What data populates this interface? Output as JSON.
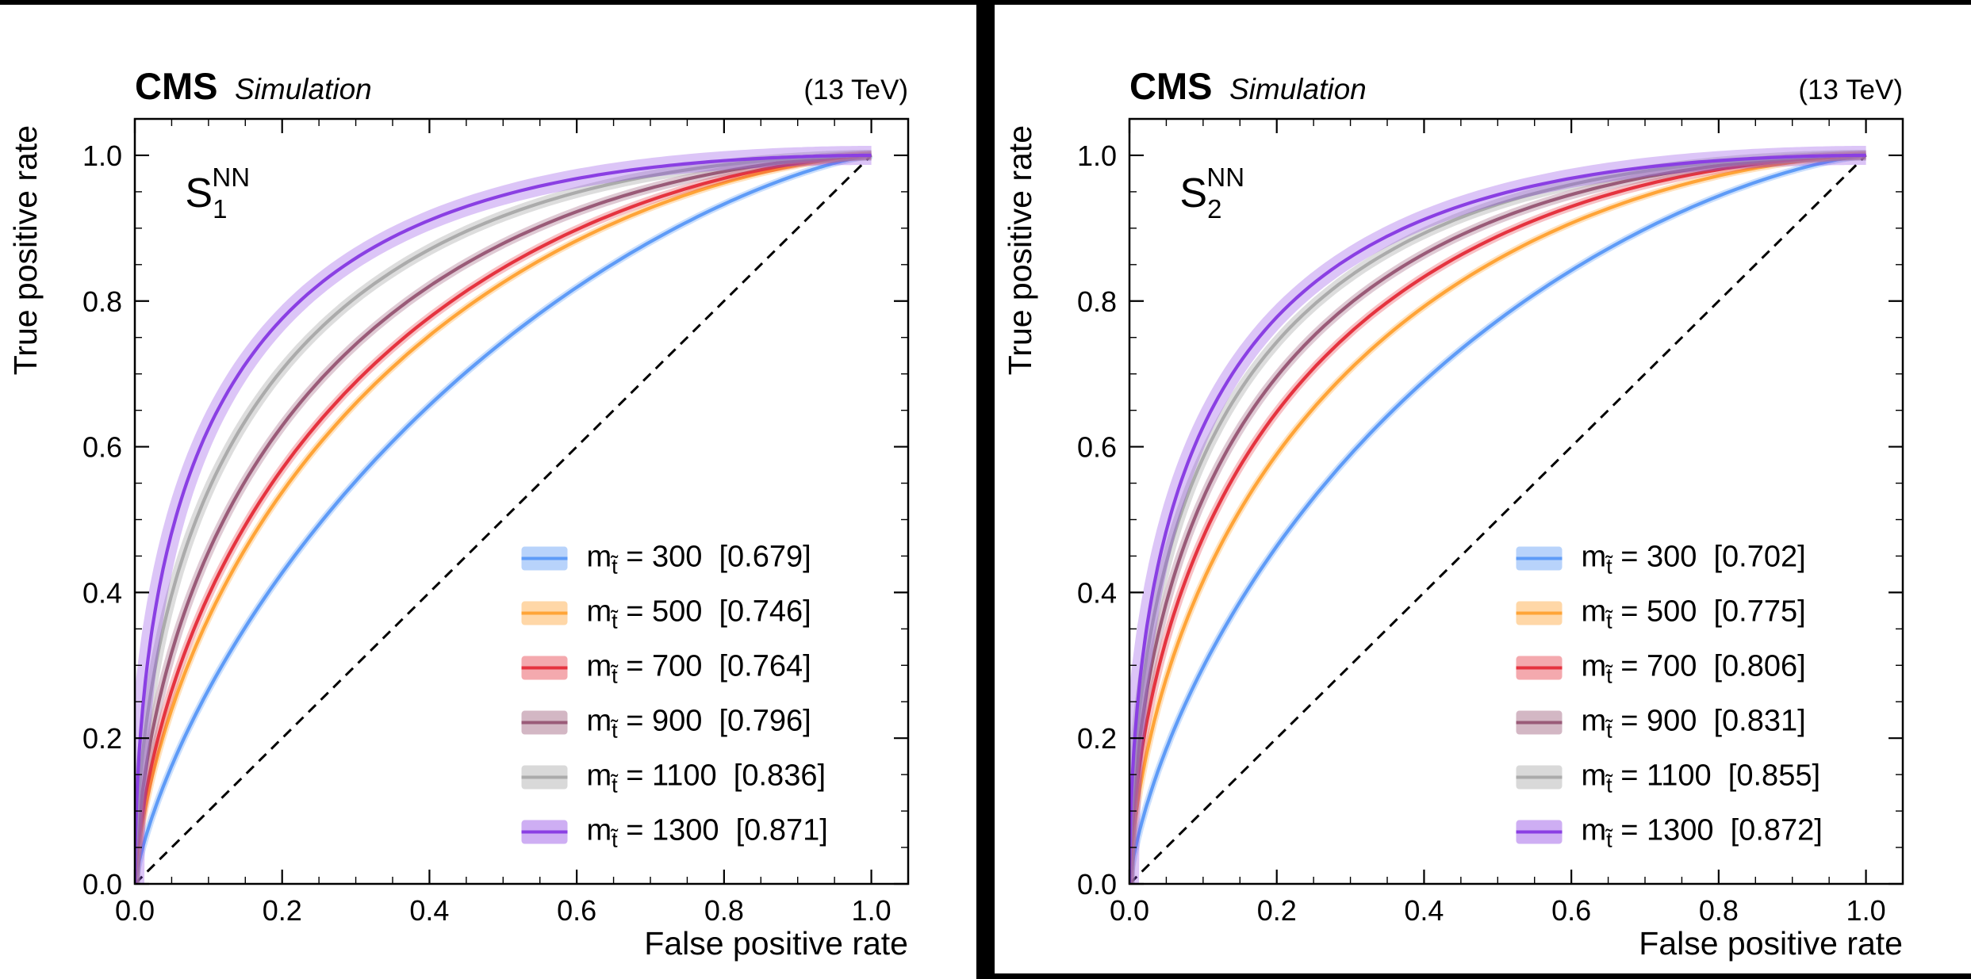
{
  "header": {
    "experiment": "CMS",
    "label": "Simulation",
    "energy": "(13 TeV)"
  },
  "axes": {
    "xlabel": "False positive rate",
    "ylabel": "True positive rate",
    "tick_labels": [
      "0.0",
      "0.2",
      "0.4",
      "0.6",
      "0.8",
      "1.0"
    ],
    "tick_values": [
      0,
      0.2,
      0.4,
      0.6,
      0.8,
      1.0
    ],
    "minor_step": 0.05,
    "lim": [
      0,
      1.05
    ],
    "frame_color": "#000000",
    "diagonal_reference": true
  },
  "legend": {
    "prefix": "m",
    "subscript": "t̃",
    "equals": " = ",
    "position": "lower right"
  },
  "chart_data": [
    {
      "type": "line",
      "panel_label": {
        "base": "S",
        "sub": "1",
        "sup": "NN"
      },
      "xlabel": "False positive rate",
      "ylabel": "True positive rate",
      "xlim": [
        0,
        1.05
      ],
      "ylim": [
        0,
        1.05
      ],
      "curve_model": "binormal-roc",
      "series": [
        {
          "mass": "300",
          "auc": 0.679,
          "auc_label": "0.679",
          "color": "#5E9BF7",
          "band_width": 9,
          "band_opacity": 0.32
        },
        {
          "mass": "500",
          "auc": 0.746,
          "auc_label": "0.746",
          "color": "#FFA437",
          "band_width": 9,
          "band_opacity": 0.32
        },
        {
          "mass": "700",
          "auc": 0.764,
          "auc_label": "0.764",
          "color": "#E5333F",
          "band_width": 11,
          "band_opacity": 0.3
        },
        {
          "mass": "900",
          "auc": 0.796,
          "auc_label": "0.796",
          "color": "#9A5B78",
          "band_width": 12,
          "band_opacity": 0.32
        },
        {
          "mass": "1100",
          "auc": 0.836,
          "auc_label": "0.836",
          "color": "#ABABAB",
          "band_width": 14,
          "band_opacity": 0.4
        },
        {
          "mass": "1300",
          "auc": 0.871,
          "auc_label": "0.871",
          "color": "#8A3FE3",
          "band_width": 24,
          "band_opacity": 0.3
        }
      ]
    },
    {
      "type": "line",
      "panel_label": {
        "base": "S",
        "sub": "2",
        "sup": "NN"
      },
      "xlabel": "False positive rate",
      "ylabel": "True positive rate",
      "xlim": [
        0,
        1.05
      ],
      "ylim": [
        0,
        1.05
      ],
      "curve_model": "binormal-roc",
      "series": [
        {
          "mass": "300",
          "auc": 0.702,
          "auc_label": "0.702",
          "color": "#5E9BF7",
          "band_width": 9,
          "band_opacity": 0.32
        },
        {
          "mass": "500",
          "auc": 0.775,
          "auc_label": "0.775",
          "color": "#FFA437",
          "band_width": 9,
          "band_opacity": 0.32
        },
        {
          "mass": "700",
          "auc": 0.806,
          "auc_label": "0.806",
          "color": "#E5333F",
          "band_width": 11,
          "band_opacity": 0.3
        },
        {
          "mass": "900",
          "auc": 0.831,
          "auc_label": "0.831",
          "color": "#9A5B78",
          "band_width": 12,
          "band_opacity": 0.32
        },
        {
          "mass": "1100",
          "auc": 0.855,
          "auc_label": "0.855",
          "color": "#ABABAB",
          "band_width": 14,
          "band_opacity": 0.4
        },
        {
          "mass": "1300",
          "auc": 0.872,
          "auc_label": "0.872",
          "color": "#8A3FE3",
          "band_width": 24,
          "band_opacity": 0.3
        }
      ]
    }
  ]
}
